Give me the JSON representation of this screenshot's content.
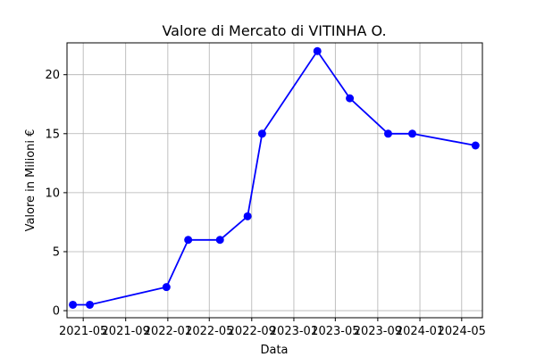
{
  "chart_data": {
    "type": "line",
    "title": "Valore di Mercato di VITINHA O.",
    "xlabel": "Data",
    "ylabel": "Valore in Milioni €",
    "x_ticks": [
      "2021-05",
      "2021-09",
      "2022-01",
      "2022-05",
      "2022-09",
      "2023-01",
      "2023-05",
      "2023-09",
      "2024-01",
      "2024-05"
    ],
    "y_ticks": [
      0,
      5,
      10,
      15,
      20
    ],
    "ylim": [
      -0.6,
      22.7
    ],
    "xlim": [
      "2021-03-15",
      "2024-06-30"
    ],
    "grid": true,
    "series": [
      {
        "color": "#0000ff",
        "x": [
          "2021-04-01",
          "2021-05-20",
          "2021-12-28",
          "2022-03-01",
          "2022-06-01",
          "2022-08-20",
          "2022-10-01",
          "2023-03-10",
          "2023-06-12",
          "2023-10-01",
          "2023-12-10",
          "2024-06-10"
        ],
        "values": [
          0.5,
          0.5,
          2,
          6,
          6,
          8,
          15,
          22,
          18,
          15,
          15,
          14
        ]
      }
    ]
  }
}
